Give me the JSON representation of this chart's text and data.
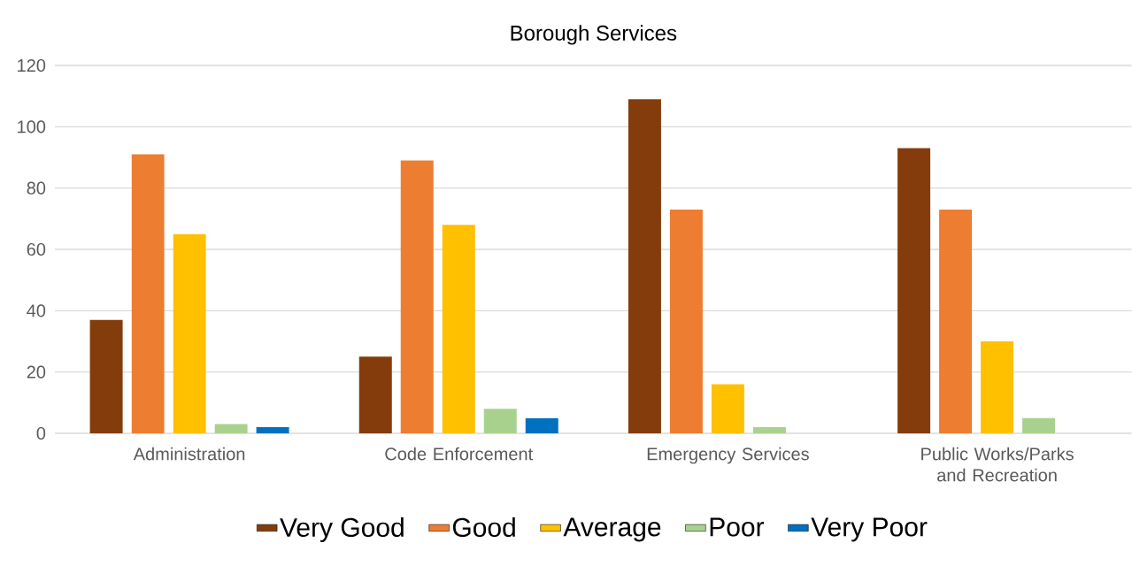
{
  "chart_data": {
    "type": "bar",
    "title": "Borough Services",
    "categories": [
      "Administration",
      "Code Enforcement",
      "Emergency Services",
      "Public Works/Parks and Recreation"
    ],
    "series": [
      {
        "name": "Very Good",
        "color": "#843c0c",
        "values": [
          37,
          25,
          109,
          93
        ]
      },
      {
        "name": "Good",
        "color": "#ed7d31",
        "values": [
          91,
          89,
          73,
          73
        ]
      },
      {
        "name": "Average",
        "color": "#ffc000",
        "values": [
          65,
          68,
          16,
          30
        ]
      },
      {
        "name": "Poor",
        "color": "#a9d18e",
        "values": [
          3,
          8,
          2,
          5
        ]
      },
      {
        "name": "Very Poor",
        "color": "#0070c0",
        "values": [
          2,
          5,
          null,
          null
        ]
      }
    ],
    "ylim": [
      0,
      120
    ],
    "yticks": [
      0,
      20,
      40,
      60,
      80,
      100,
      120
    ],
    "grid": "y",
    "legend": "bottom"
  }
}
